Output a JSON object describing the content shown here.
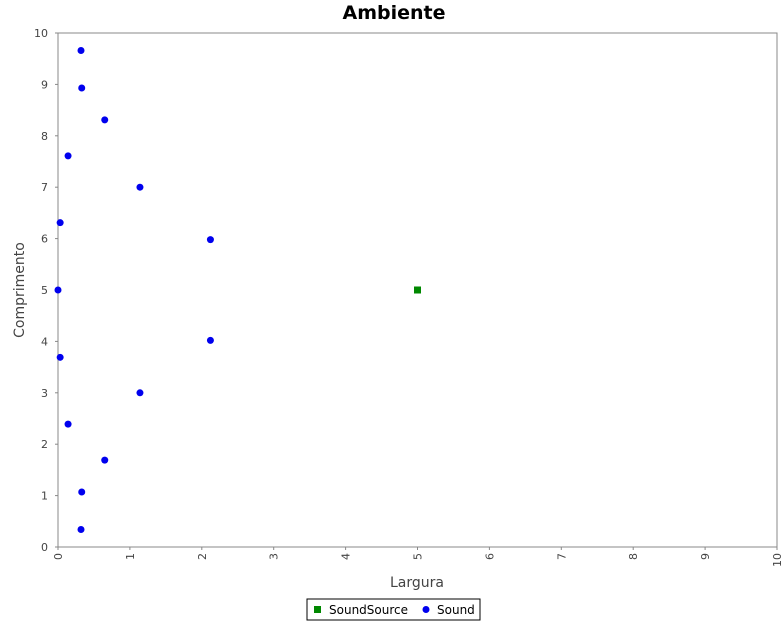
{
  "chart_data": {
    "type": "scatter",
    "title": "Ambiente",
    "xlabel": "Largura",
    "ylabel": "Comprimento",
    "xlim": [
      0,
      10
    ],
    "ylim": [
      0,
      10
    ],
    "xticks": [
      "0",
      "1",
      "2",
      "3",
      "4",
      "5",
      "6",
      "7",
      "8",
      "9",
      "10"
    ],
    "yticks": [
      "0",
      "1",
      "2",
      "3",
      "4",
      "5",
      "6",
      "7",
      "8",
      "9",
      "10"
    ],
    "grid": false,
    "legend_position": "bottom-center",
    "series": [
      {
        "name": "SoundSource",
        "color": "#008800",
        "marker": "square",
        "points": [
          [
            5.0,
            5.0
          ]
        ]
      },
      {
        "name": "Sound",
        "color": "#0000ee",
        "marker": "circle",
        "points": [
          [
            0.0,
            5.0
          ],
          [
            0.03,
            6.31
          ],
          [
            0.03,
            3.69
          ],
          [
            0.14,
            7.61
          ],
          [
            0.14,
            2.39
          ],
          [
            0.32,
            9.66
          ],
          [
            0.32,
            0.34
          ],
          [
            0.33,
            8.93
          ],
          [
            0.33,
            1.07
          ],
          [
            0.65,
            8.31
          ],
          [
            0.65,
            1.69
          ],
          [
            1.14,
            7.0
          ],
          [
            1.14,
            3.0
          ],
          [
            2.12,
            5.98
          ],
          [
            2.12,
            4.02
          ]
        ]
      }
    ]
  }
}
